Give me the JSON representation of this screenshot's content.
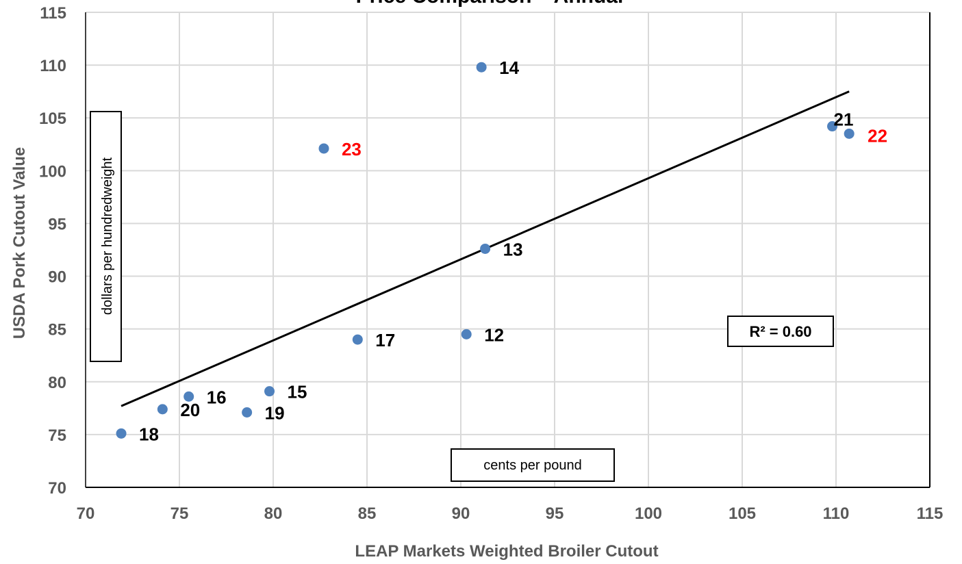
{
  "chart_data": {
    "type": "scatter",
    "title": "Price Comparison – Annual",
    "xlabel": "LEAP Markets Weighted Broiler Cutout",
    "ylabel": "USDA Pork Cutout Value",
    "xlim": [
      70,
      115
    ],
    "ylim": [
      70,
      115
    ],
    "x_ticks": [
      70,
      75,
      80,
      85,
      90,
      95,
      100,
      105,
      110,
      115
    ],
    "y_ticks": [
      70,
      75,
      80,
      85,
      90,
      95,
      100,
      105,
      110,
      115
    ],
    "grid": true,
    "x_unit_note": "cents per pound",
    "y_unit_note": "dollars per hundredweight",
    "r_squared_label": "R² = 0.60",
    "trendline": {
      "type": "linear",
      "x": [
        71.9,
        110.7
      ],
      "y": [
        77.7,
        107.5
      ]
    },
    "points": [
      {
        "label": "12",
        "x": 90.3,
        "y": 84.5,
        "label_color": "#000000"
      },
      {
        "label": "13",
        "x": 91.3,
        "y": 92.6,
        "label_color": "#000000"
      },
      {
        "label": "14",
        "x": 91.1,
        "y": 109.8,
        "label_color": "#000000"
      },
      {
        "label": "15",
        "x": 79.8,
        "y": 79.1,
        "label_color": "#000000"
      },
      {
        "label": "16",
        "x": 75.5,
        "y": 78.6,
        "label_color": "#000000"
      },
      {
        "label": "17",
        "x": 84.5,
        "y": 84.0,
        "label_color": "#000000"
      },
      {
        "label": "18",
        "x": 71.9,
        "y": 75.1,
        "label_color": "#000000"
      },
      {
        "label": "19",
        "x": 78.6,
        "y": 77.1,
        "label_color": "#000000"
      },
      {
        "label": "20",
        "x": 74.1,
        "y": 77.4,
        "label_color": "#000000"
      },
      {
        "label": "21",
        "x": 109.8,
        "y": 104.2,
        "label_color": "#000000"
      },
      {
        "label": "22",
        "x": 110.7,
        "y": 103.5,
        "label_color": "#ff0000"
      },
      {
        "label": "23",
        "x": 82.7,
        "y": 102.1,
        "label_color": "#ff0000"
      }
    ],
    "colors": {
      "marker": "#4f81bd",
      "grid": "#d9d9d9",
      "axis_text": "#595959",
      "highlight": "#ff0000"
    }
  }
}
